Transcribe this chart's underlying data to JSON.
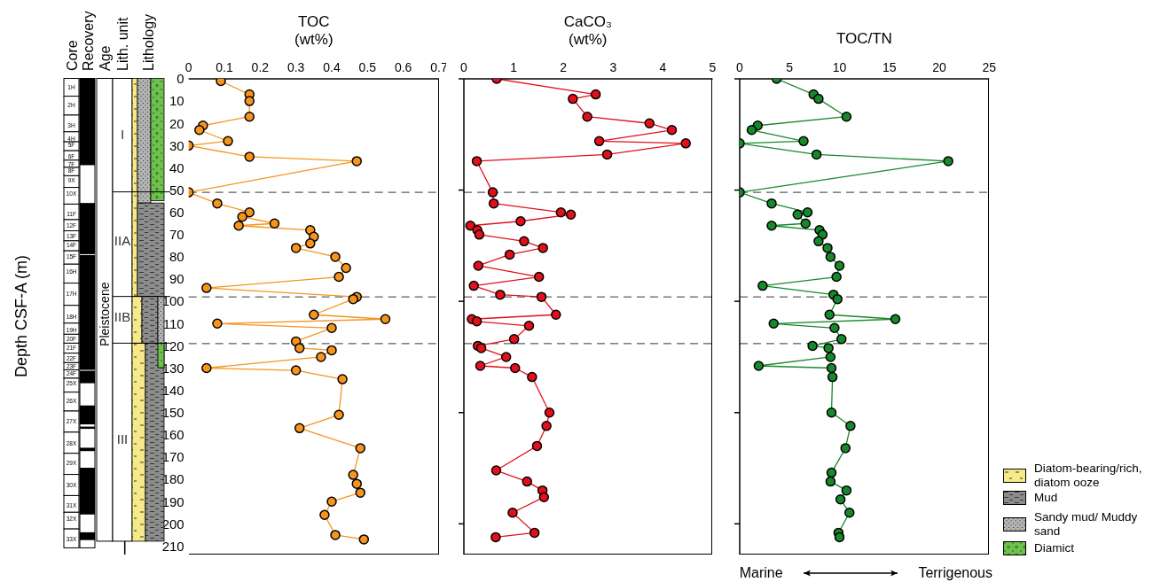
{
  "chart_data": [
    {
      "type": "line",
      "title": "TOC",
      "xlabel": "(wt%)",
      "ylabel": "Depth CSF-A (m)",
      "xlim": [
        0,
        0.7
      ],
      "xticks": [
        0,
        0.1,
        0.2,
        0.3,
        0.4,
        0.5,
        0.6,
        0.7
      ],
      "ylim": [
        214,
        0
      ],
      "yticks": [
        0,
        10,
        20,
        30,
        40,
        50,
        60,
        70,
        80,
        90,
        100,
        110,
        120,
        130,
        140,
        150,
        160,
        170,
        180,
        190,
        200,
        210
      ],
      "marker": "circle",
      "ref_lines": [
        {
          "axis": "y",
          "value": 51,
          "line_style": "dashed"
        },
        {
          "axis": "y",
          "value": 98,
          "line_style": "dashed"
        },
        {
          "axis": "y",
          "value": 119,
          "line_style": "dashed"
        }
      ],
      "annotations": [
        "Core",
        "Recovery",
        "Age",
        "Lith. unit",
        "Lithology",
        "1H",
        "2H",
        "3H",
        "4H",
        "5F",
        "6F",
        "7F",
        "8F",
        "9X",
        "10X",
        "11F",
        "12F",
        "13F",
        "14F",
        "15F",
        "16H",
        "17H",
        "18H",
        "19H",
        "20F",
        "21F",
        "22F",
        "23F",
        "24F",
        "25X",
        "26X",
        "27X",
        "28X",
        "29X",
        "30X",
        "31X",
        "32X",
        "33X",
        "Pleistocene",
        "I",
        "IIA",
        "IIB",
        "III",
        "Diatom-bearing/rich, diatom ooze",
        "Mud",
        "Sandy mud/ Muddy sand",
        "Diamict"
      ],
      "series": [
        {
          "color": "#f7941d",
          "x": [
            0.09,
            0.17,
            0.17,
            0.17,
            0.04,
            0.03,
            0.11,
            0,
            0.17,
            0.47,
            0,
            0.08,
            0.17,
            0.15,
            0.24,
            0.14,
            0.34,
            0.35,
            0.34,
            0.3,
            0.41,
            0.44,
            0.42,
            0.05,
            0.47,
            0.46,
            0.35,
            0.55,
            0.08,
            0.4,
            0.3,
            0.31,
            0.4,
            0.37,
            0.05,
            0.3,
            0.43,
            0.42,
            0.31,
            0.48,
            0.46,
            0.47,
            0.48,
            0.4,
            0.38,
            0.41,
            0.49
          ],
          "values": [
            1,
            7,
            10,
            17,
            21,
            23,
            28,
            30,
            35,
            37,
            51,
            56,
            60,
            62,
            65,
            66,
            68,
            71,
            74,
            76,
            80,
            85,
            89,
            94,
            98,
            99,
            106,
            108,
            110,
            112,
            118,
            121,
            122,
            125,
            130,
            131,
            135,
            151,
            157,
            166,
            178,
            182,
            186,
            190,
            196,
            205,
            207
          ]
        }
      ]
    },
    {
      "type": "line",
      "title": "CaCO₃",
      "xlabel": "(wt%)",
      "xlim": [
        0,
        5
      ],
      "xticks": [
        0,
        1,
        2,
        3,
        4,
        5
      ],
      "ylim": [
        214,
        0
      ],
      "yticks": [
        {
          "value": 0,
          "label": null
        },
        {
          "value": 50,
          "label": null
        },
        {
          "value": 100,
          "label": null
        },
        {
          "value": 150,
          "label": null
        },
        {
          "value": 200,
          "label": null
        }
      ],
      "tick_labels": "x",
      "marker": "circle",
      "ref_lines": [
        {
          "axis": "y",
          "value": 51,
          "line_style": "dashed"
        },
        {
          "axis": "y",
          "value": 98,
          "line_style": "dashed"
        },
        {
          "axis": "y",
          "value": 119,
          "line_style": "dashed"
        }
      ],
      "series": [
        {
          "color": "#e3101b",
          "x": [
            0.66,
            2.65,
            2.19,
            2.48,
            3.73,
            4.18,
            2.72,
            4.46,
            2.88,
            0.26,
            0.58,
            0.6,
            1.95,
            2.15,
            1.14,
            0.13,
            0.27,
            0.31,
            1.21,
            1.59,
            0.92,
            0.29,
            1.51,
            0.2,
            0.73,
            1.56,
            1.85,
            0.16,
            0.26,
            1.31,
            1.01,
            0.28,
            0.35,
            0.85,
            0.33,
            1.03,
            1.37,
            1.72,
            1.66,
            1.47,
            0.65,
            1.27,
            1.58,
            1.61,
            0.98,
            1.42,
            0.64
          ],
          "values": [
            0,
            7,
            9,
            17,
            20,
            23,
            28,
            29,
            34,
            37,
            51,
            56,
            60,
            61,
            64,
            66,
            68,
            70,
            73,
            76,
            79,
            84,
            89,
            93,
            97,
            98,
            106,
            108,
            109,
            111,
            117,
            120,
            121,
            125,
            129,
            130,
            134,
            150,
            156,
            165,
            176,
            181,
            185,
            188,
            195,
            204,
            206
          ]
        }
      ]
    },
    {
      "type": "line",
      "title": "TOC/TN",
      "xlim": [
        0,
        25
      ],
      "xticks": [
        0,
        5,
        10,
        15,
        20,
        25
      ],
      "ylim": [
        214,
        0
      ],
      "yticks": [
        {
          "value": 0,
          "label": null
        },
        {
          "value": 50,
          "label": null
        },
        {
          "value": 100,
          "label": null
        },
        {
          "value": 150,
          "label": null
        },
        {
          "value": 200,
          "label": null
        }
      ],
      "tick_labels": "x",
      "marker": "circle",
      "ref_lines": [
        {
          "axis": "y",
          "value": 51,
          "line_style": "dashed"
        },
        {
          "axis": "y",
          "value": 98,
          "line_style": "dashed"
        },
        {
          "axis": "y",
          "value": 119,
          "line_style": "dashed"
        }
      ],
      "annotations": [
        "Marine",
        "Terrigenous"
      ],
      "series": [
        {
          "color": "#17892a",
          "x": [
            3.7,
            7.4,
            7.9,
            10.7,
            1.8,
            1.2,
            6.4,
            0,
            7.7,
            20.9,
            0,
            3.2,
            6.8,
            5.8,
            6.6,
            3.2,
            8.0,
            8.3,
            7.9,
            8.8,
            9.1,
            10.0,
            9.7,
            2.3,
            9.4,
            9.8,
            9.0,
            15.6,
            3.4,
            9.5,
            10.2,
            7.3,
            8.9,
            9.1,
            1.9,
            9.2,
            9.3,
            9.2,
            11.1,
            10.6,
            9.2,
            9.1,
            10.7,
            10.1,
            11.0,
            9.9,
            10.0
          ],
          "values": [
            0,
            7,
            9,
            17,
            21,
            23,
            28,
            29,
            34,
            37,
            51,
            56,
            60,
            61,
            65,
            66,
            68,
            70,
            73,
            76,
            80,
            84,
            89,
            93,
            97,
            99,
            106,
            108,
            110,
            112,
            117,
            120,
            121,
            125,
            129,
            130,
            134,
            150,
            156,
            166,
            177,
            181,
            185,
            189,
            195,
            204,
            206
          ]
        }
      ]
    }
  ]
}
